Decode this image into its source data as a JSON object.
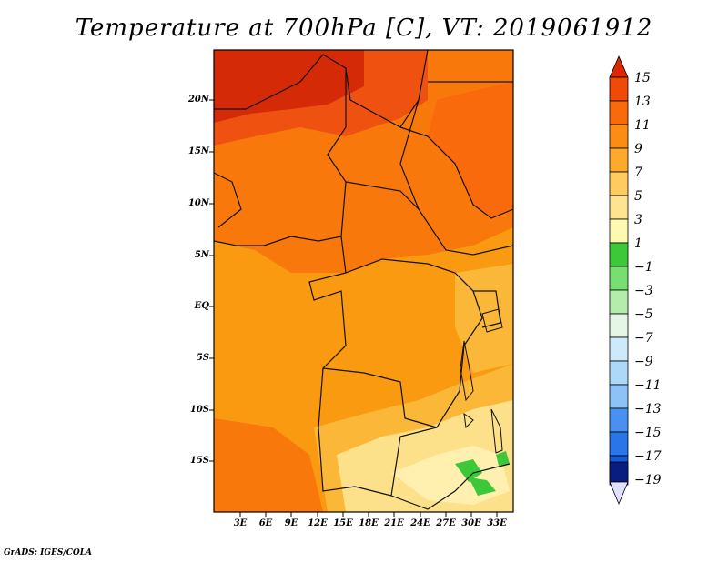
{
  "title": "Temperature at 700hPa [C], VT: 2019061912",
  "credit": "GrADS: IGES/COLA",
  "lat_labels": [
    "20N",
    "15N",
    "10N",
    "5N",
    "EQ",
    "5S",
    "10S",
    "15S"
  ],
  "lon_labels": [
    "3E",
    "6E",
    "9E",
    "12E",
    "15E",
    "18E",
    "21E",
    "24E",
    "27E",
    "30E",
    "33E"
  ],
  "colorbar": {
    "labels": [
      "15",
      "13",
      "11",
      "9",
      "7",
      "5",
      "3",
      "1",
      "−1",
      "−3",
      "−5",
      "−7",
      "−9",
      "−11",
      "−13",
      "−15",
      "−17",
      "−19"
    ],
    "colors": [
      "#ffffff",
      "#e0e0ff",
      "#081d7f",
      "#0b3bb0",
      "#1858d6",
      "#2a76e8",
      "#4a90ee",
      "#6aaaf2",
      "#8cc2f5",
      "#aed8f8",
      "#cdeafb",
      "#e6f6e6",
      "#b4ecac",
      "#78de72",
      "#3cc838",
      "#fff8b0",
      "#fee490",
      "#fecb60",
      "#fdaa2c",
      "#fb8c14",
      "#f86a0c",
      "#ef4a08",
      "#dc2604"
    ]
  },
  "colors": {
    "warmest": "#d42a08",
    "warm": "#ef5210",
    "mid": "#f8780c",
    "cool": "#f99a10",
    "light": "#fbb838",
    "pale": "#fde08a",
    "green": "#3cc838"
  }
}
